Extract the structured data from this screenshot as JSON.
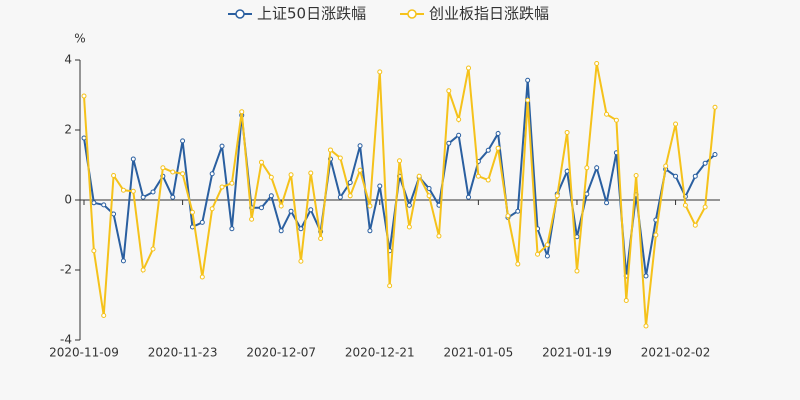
{
  "chart_data": {
    "type": "line",
    "y_label": "%",
    "categories": [
      "2020-11-09",
      null,
      null,
      null,
      null,
      null,
      null,
      null,
      null,
      null,
      "2020-11-23",
      null,
      null,
      null,
      null,
      null,
      null,
      null,
      null,
      null,
      "2020-12-07",
      null,
      null,
      null,
      null,
      null,
      null,
      null,
      null,
      null,
      "2020-12-21",
      null,
      null,
      null,
      null,
      null,
      null,
      null,
      null,
      null,
      "2021-01-05",
      null,
      null,
      null,
      null,
      null,
      null,
      null,
      null,
      null,
      "2021-01-19",
      null,
      null,
      null,
      null,
      null,
      null,
      null,
      null,
      null,
      "2021-02-02",
      null,
      null,
      null,
      null
    ],
    "series": [
      {
        "name": "上证50日涨跌幅",
        "color": "#2a5fa0",
        "values": [
          1.77,
          -0.08,
          -0.14,
          -0.4,
          -1.74,
          1.17,
          0.08,
          0.23,
          0.68,
          0.08,
          1.69,
          -0.77,
          -0.64,
          0.75,
          1.54,
          -0.82,
          2.42,
          -0.22,
          -0.22,
          0.12,
          -0.88,
          -0.32,
          -0.82,
          -0.28,
          -0.9,
          1.17,
          0.08,
          0.5,
          1.55,
          -0.88,
          0.4,
          -1.45,
          0.68,
          -0.15,
          0.65,
          0.33,
          -0.15,
          1.62,
          1.85,
          0.08,
          1.1,
          1.42,
          1.9,
          -0.5,
          -0.32,
          3.42,
          -0.82,
          -1.6,
          0.17,
          0.82,
          -1.05,
          0.17,
          0.92,
          -0.08,
          1.35,
          -2.17,
          0.15,
          -2.17,
          -0.57,
          0.88,
          0.68,
          0.1,
          0.68,
          1.05,
          1.3
        ]
      },
      {
        "name": "创业板指日涨跌幅",
        "color": "#f5c21b",
        "values": [
          2.97,
          -1.45,
          -3.3,
          0.7,
          0.28,
          0.25,
          -2.0,
          -1.4,
          0.92,
          0.8,
          0.75,
          -0.35,
          -2.2,
          -0.25,
          0.37,
          0.48,
          2.52,
          -0.55,
          1.08,
          0.65,
          -0.17,
          0.72,
          -1.75,
          0.77,
          -1.1,
          1.43,
          1.2,
          0.12,
          0.85,
          -0.17,
          3.66,
          -2.45,
          1.12,
          -0.77,
          0.68,
          0.12,
          -1.03,
          3.12,
          2.3,
          3.77,
          0.68,
          0.57,
          1.48,
          -0.45,
          -1.83,
          2.85,
          -1.55,
          -1.28,
          0.12,
          1.93,
          -2.03,
          0.92,
          3.9,
          2.45,
          2.28,
          -2.87,
          0.7,
          -3.6,
          -1.0,
          0.97,
          2.17,
          -0.15,
          -0.72,
          -0.2,
          2.65
        ]
      }
    ],
    "ylim": [
      -4,
      4
    ],
    "yticks": [
      -4,
      -2,
      0,
      2,
      4
    ],
    "grid": false,
    "legend": "top"
  }
}
